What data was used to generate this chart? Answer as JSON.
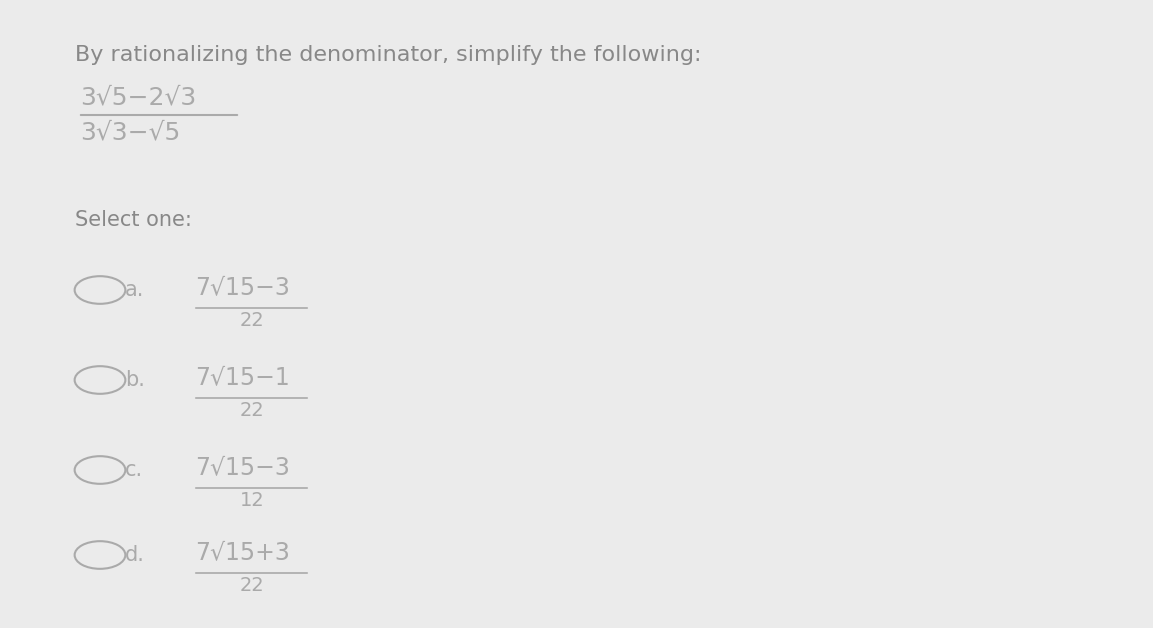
{
  "background_color": "#ebebeb",
  "title_text": "By rationalizing the denominator, simplify the following:",
  "title_color": "#888888",
  "fraction_color": "#aaaaaa",
  "label_color": "#aaaaaa",
  "circle_color": "#aaaaaa",
  "numerator_text": "3√5−2√3",
  "denominator_text": "3√3−√5",
  "select_text": "Select one:",
  "options": [
    {
      "label": "a.",
      "num": "7√15−3",
      "den": "22"
    },
    {
      "label": "b.",
      "num": "7√15−1",
      "den": "22"
    },
    {
      "label": "c.",
      "num": "7√15−3",
      "den": "12"
    },
    {
      "label": "d.",
      "num": "7√15+3",
      "den": "22"
    }
  ]
}
